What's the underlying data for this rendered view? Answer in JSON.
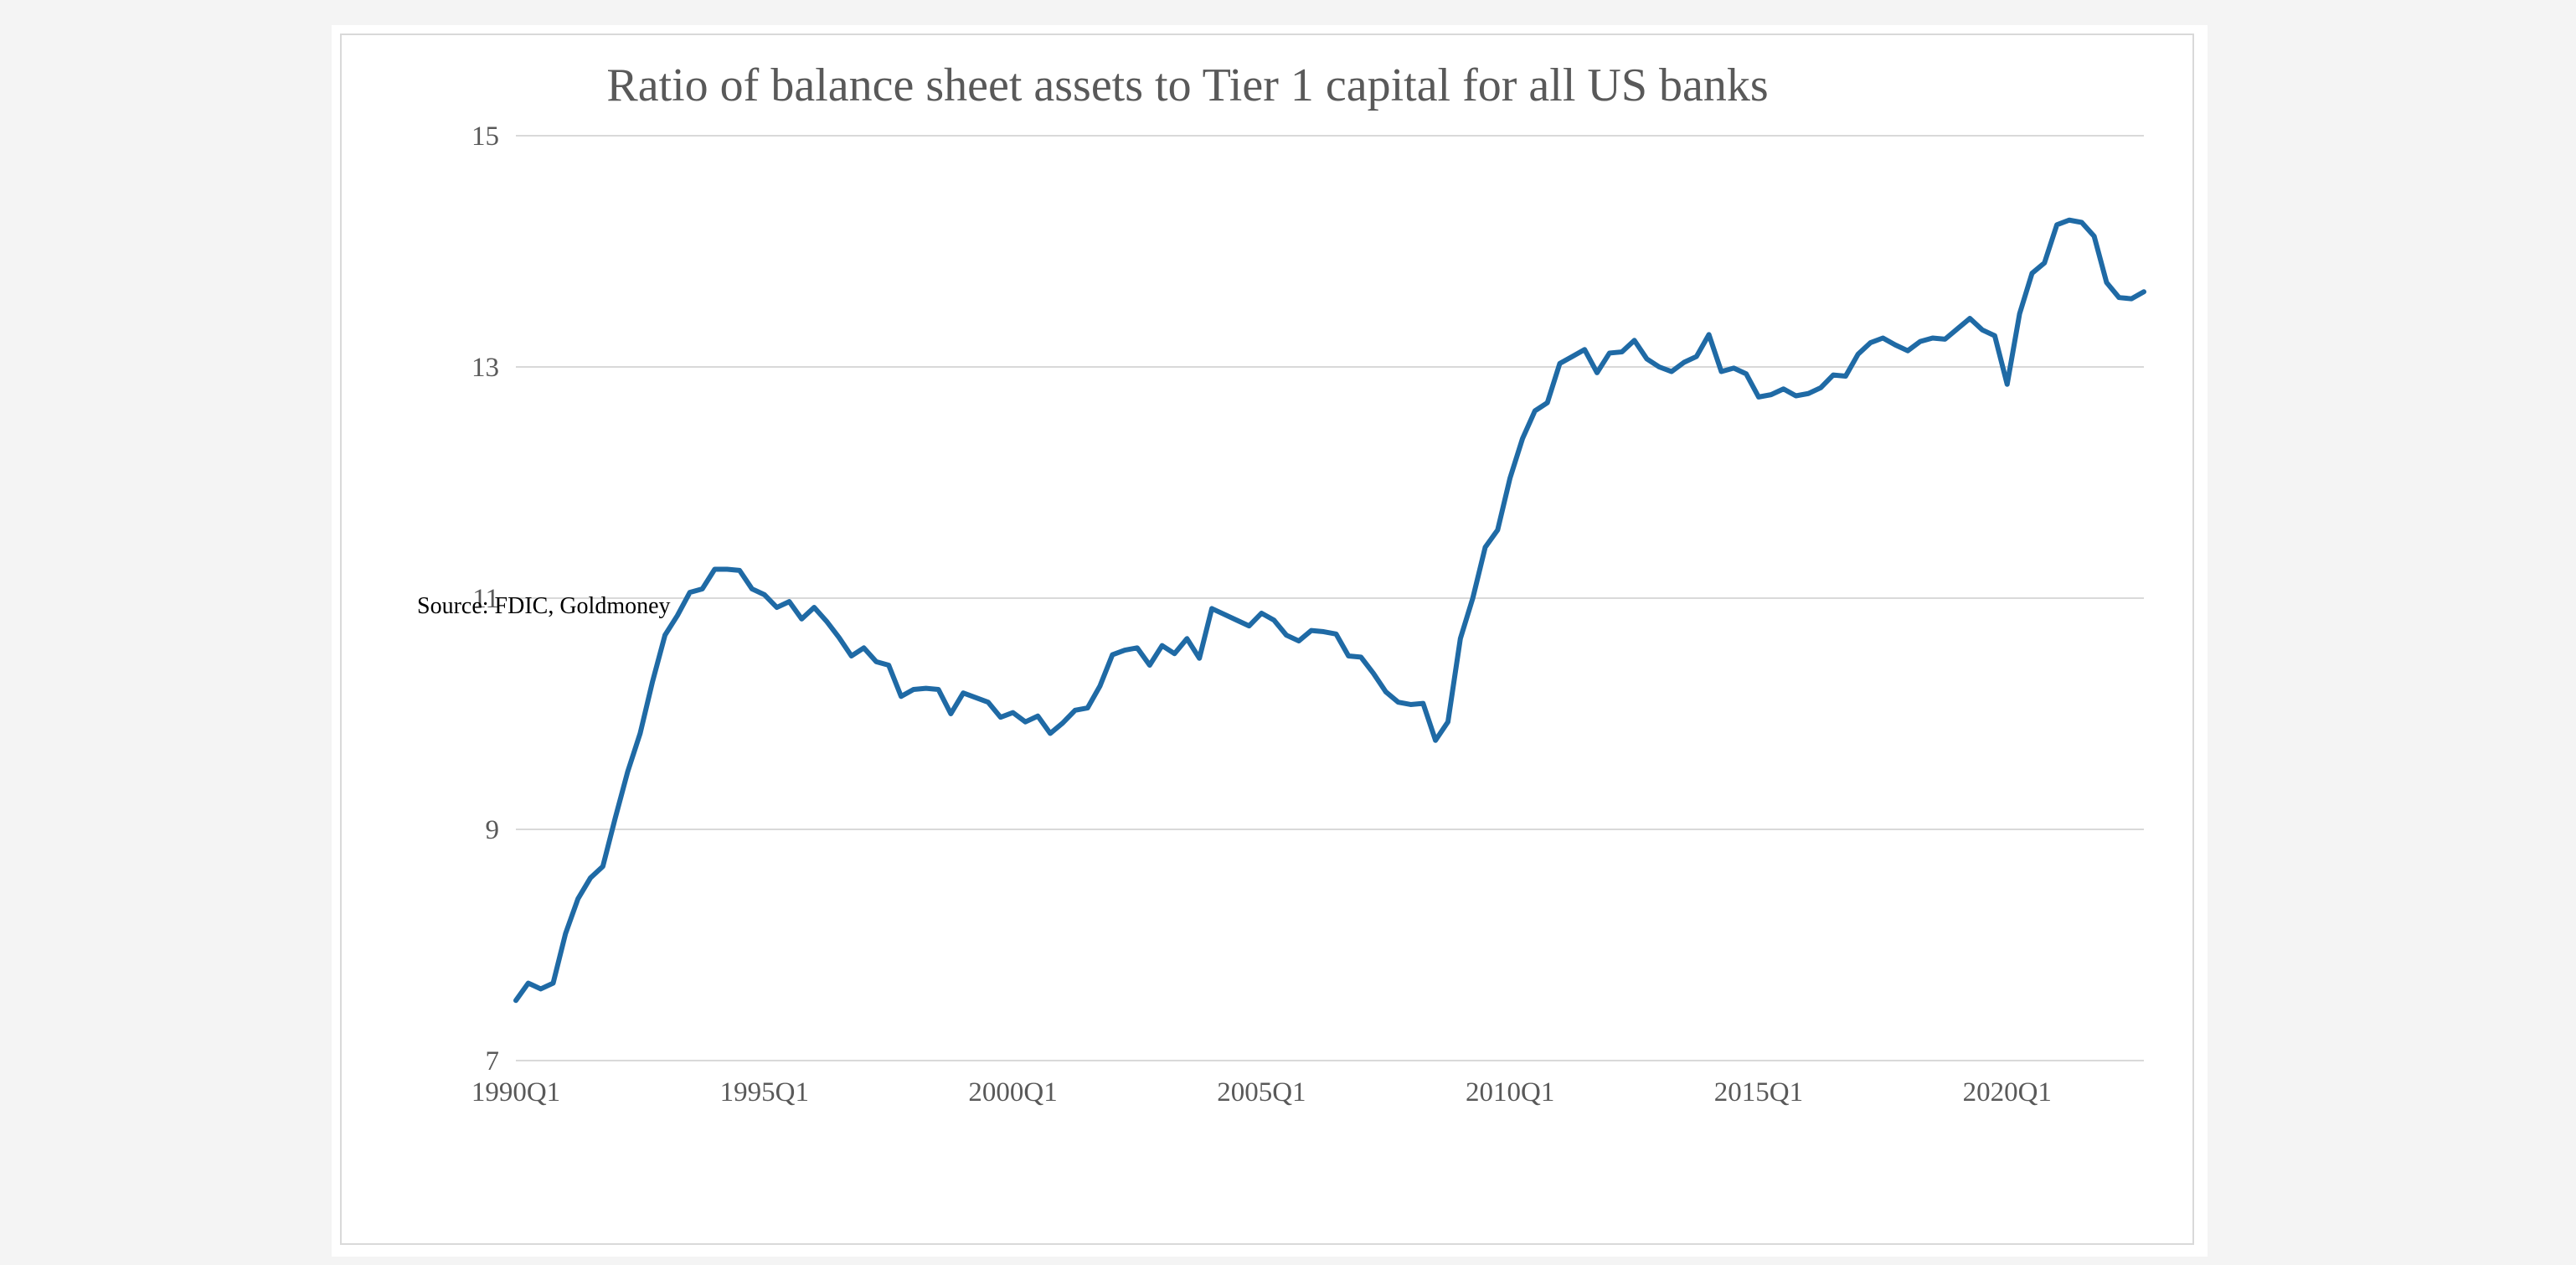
{
  "colors": {
    "line": "#1f6aa5",
    "grid": "#d9d9d9",
    "text": "#595959",
    "background": "#ffffff",
    "page": "#f4f4f4"
  },
  "source": "Source: FDIC, Goldmoney",
  "chart_data": {
    "type": "line",
    "title": "Ratio of balance sheet assets to Tier 1 capital for all US banks",
    "xlabel": "",
    "ylabel": "",
    "ylim": [
      7,
      15
    ],
    "yticks": [
      "7",
      "9",
      "11",
      "13",
      "15"
    ],
    "xticks": [
      "1990Q1",
      "1995Q1",
      "2000Q1",
      "2005Q1",
      "2010Q1",
      "2015Q1",
      "2020Q1"
    ],
    "grid": true,
    "legend": "none",
    "x_start": "1990Q1",
    "frequency": "quarterly",
    "series": [
      {
        "values": [
          7.52,
          7.67,
          7.62,
          7.67,
          8.1,
          8.4,
          8.58,
          8.68,
          9.1,
          9.5,
          9.83,
          10.28,
          10.68,
          10.85,
          11.05,
          11.08,
          11.25,
          11.25,
          11.24,
          11.08,
          11.03,
          10.92,
          10.97,
          10.82,
          10.92,
          10.8,
          10.66,
          10.5,
          10.57,
          10.45,
          10.42,
          10.15,
          10.21,
          10.22,
          10.21,
          10.0,
          10.18,
          10.14,
          10.1,
          9.97,
          10.01,
          9.93,
          9.98,
          9.83,
          9.92,
          10.03,
          10.05,
          10.24,
          10.51,
          10.55,
          10.57,
          10.42,
          10.59,
          10.52,
          10.65,
          10.48,
          10.91,
          10.86,
          10.81,
          10.76,
          10.87,
          10.81,
          10.68,
          10.63,
          10.72,
          10.71,
          10.69,
          10.5,
          10.49,
          10.35,
          10.19,
          10.1,
          10.08,
          10.09,
          9.77,
          9.93,
          10.65,
          11.0,
          11.44,
          11.59,
          12.04,
          12.38,
          12.62,
          12.69,
          13.03,
          13.09,
          13.15,
          12.95,
          13.12,
          13.13,
          13.23,
          13.07,
          13.0,
          12.96,
          13.04,
          13.09,
          13.28,
          12.96,
          12.99,
          12.94,
          12.74,
          12.76,
          12.81,
          12.75,
          12.77,
          12.82,
          12.93,
          12.92,
          13.11,
          13.21,
          13.25,
          13.19,
          13.14,
          13.22,
          13.25,
          13.24,
          13.33,
          13.42,
          13.32,
          13.27,
          12.85,
          13.46,
          13.81,
          13.9,
          14.23,
          14.27,
          14.25,
          14.13,
          13.73,
          13.6,
          13.59,
          13.65
        ]
      }
    ]
  }
}
